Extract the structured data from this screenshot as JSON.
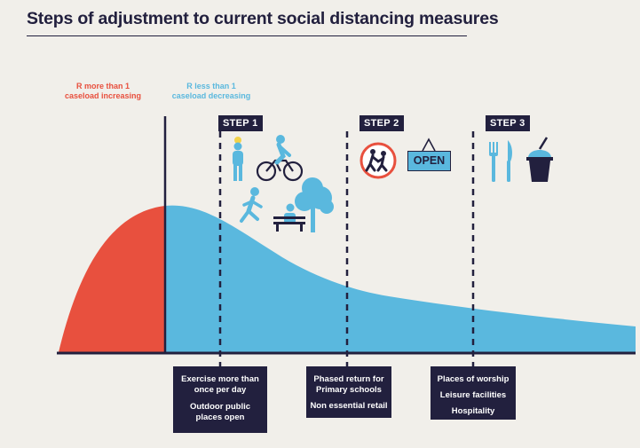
{
  "title": "Steps of adjustment to current social distancing measures",
  "phases": {
    "increasing": {
      "line1": "R more than 1",
      "line2": "caseload increasing",
      "color": "#e8503e"
    },
    "decreasing": {
      "line1": "R less than 1",
      "line2": "caseload decreasing",
      "color": "#5ab8de"
    }
  },
  "steps": [
    {
      "label": "STEP 1",
      "icons": [
        "person-icon",
        "cyclist-icon",
        "runner-icon",
        "tree-icon",
        "bench-person-icon"
      ],
      "measures": [
        "Exercise more than once per day",
        "Outdoor public places open"
      ]
    },
    {
      "label": "STEP 2",
      "icons": [
        "school-children-sign-icon",
        "open-sign-icon"
      ],
      "open_sign_text": "OPEN",
      "measures": [
        "Phased return for Primary schools",
        "Non essential retail"
      ]
    },
    {
      "label": "STEP 3",
      "icons": [
        "fork-icon",
        "knife-icon",
        "drink-cup-icon"
      ],
      "measures": [
        "Places of worship",
        "Leisure facilities",
        "Hospitality"
      ]
    }
  ],
  "colors": {
    "navy": "#22203e",
    "red": "#e8503e",
    "blue": "#5ab8de",
    "background": "#f1efea"
  }
}
